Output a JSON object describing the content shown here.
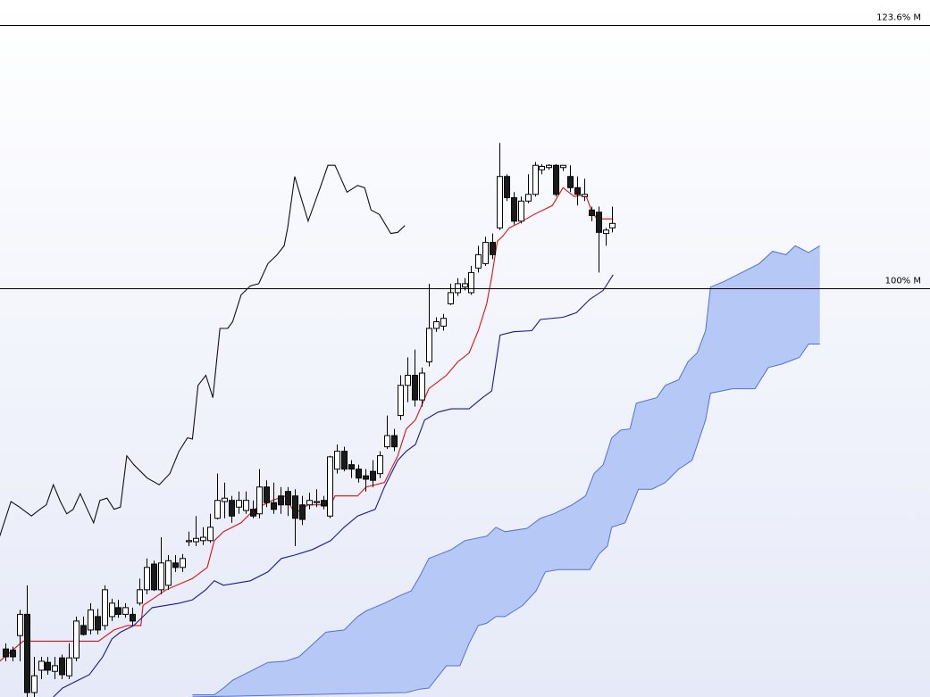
{
  "chart_data": {
    "type": "candlestick",
    "xlim": [
      -0.76,
      131
    ],
    "ylim": [
      63.4,
      125.8
    ],
    "levels": [
      {
        "value": 123.6,
        "label": "123.6% M"
      },
      {
        "value": 100,
        "label": "100% M"
      }
    ],
    "level_color": "#000000",
    "candles": {
      "up_color": "#ffffff",
      "down_color": "#1a1a1a",
      "edge_color": "#000000",
      "x": [
        0,
        1,
        2,
        3,
        4,
        5,
        6,
        7,
        8,
        9,
        10,
        11,
        12,
        13,
        14,
        15,
        16,
        17,
        18,
        19,
        20,
        21,
        22,
        23,
        24,
        25,
        26,
        27,
        28,
        29,
        30,
        31,
        32,
        33,
        34,
        35,
        36,
        37,
        38,
        39,
        40,
        41,
        42,
        43,
        44,
        45,
        46,
        47,
        48,
        49,
        50,
        51,
        52,
        53,
        54,
        55,
        56,
        57,
        58,
        59,
        60,
        61,
        62,
        63,
        64,
        65,
        66,
        67,
        68,
        69,
        70,
        71,
        72,
        73,
        74,
        75,
        76,
        77,
        78,
        79,
        80,
        81,
        82,
        83,
        84,
        85,
        86
      ],
      "open": [
        67.7,
        67.6,
        68.9,
        70.8,
        63.8,
        65.8,
        66.5,
        65.7,
        66.9,
        65.3,
        66.9,
        69.8,
        69.4,
        70.6,
        69.8,
        70.6,
        71.4,
        70.8,
        70.8,
        71.8,
        73.0,
        75.3,
        73.0,
        73.4,
        75.4,
        75.0,
        77.3,
        77.3,
        77.4,
        77.4,
        79.4,
        80.9,
        81.0,
        80.4,
        80.1,
        80.2,
        79.8,
        82.2,
        80.8,
        81.4,
        81.8,
        81.4,
        80.6,
        80.6,
        80.8,
        81.0,
        79.6,
        83.8,
        85.4,
        84.2,
        83.8,
        83.2,
        83.6,
        83.4,
        85.8,
        86.8,
        88.6,
        91.3,
        92.2,
        90.0,
        93.4,
        96.4,
        96.6,
        98.6,
        99.6,
        100.1,
        99.6,
        101.8,
        102.2,
        104.1,
        105.4,
        110.0,
        108.1,
        106.0,
        107.8,
        108.4,
        110.6,
        110.8,
        111.0,
        110.8,
        110.0,
        109.0,
        108.2,
        107.0,
        106.8,
        104.9,
        105.4
      ],
      "high": [
        68.2,
        67.9,
        71.2,
        73.4,
        67.0,
        67.0,
        67.0,
        67.0,
        67.2,
        68.2,
        70.6,
        70.6,
        71.8,
        71.3,
        73.4,
        72.2,
        72.1,
        71.8,
        71.4,
        74.0,
        75.8,
        75.6,
        77.7,
        76.1,
        76.1,
        76.2,
        78.2,
        79.6,
        78.6,
        79.8,
        83.4,
        82.6,
        81.4,
        81.8,
        81.8,
        81.0,
        83.8,
        82.8,
        82.6,
        82.2,
        82.2,
        82.0,
        81.4,
        81.7,
        82.0,
        81.4,
        85.0,
        86.0,
        85.8,
        84.6,
        84.2,
        83.8,
        84.6,
        85.4,
        88.6,
        87.4,
        92.2,
        93.8,
        94.5,
        92.9,
        100.4,
        97.4,
        97.7,
        100.4,
        100.9,
        100.9,
        102.0,
        103.8,
        104.6,
        104.9,
        113.0,
        110.2,
        108.6,
        108.2,
        110.2,
        111.3,
        111.1,
        111.1,
        111.1,
        111.0,
        111.0,
        110.0,
        109.8,
        107.3,
        107.3,
        105.4,
        107.3
      ],
      "low": [
        66.6,
        66.6,
        66.6,
        63.4,
        63.4,
        65.0,
        65.4,
        65.0,
        65.0,
        65.0,
        66.6,
        68.9,
        69.0,
        69.0,
        69.4,
        70.2,
        70.5,
        70.5,
        69.8,
        71.6,
        72.6,
        72.9,
        72.6,
        73.0,
        74.6,
        74.6,
        76.9,
        76.9,
        77.0,
        77.2,
        79.3,
        79.4,
        79.0,
        79.8,
        79.8,
        79.4,
        79.4,
        80.4,
        79.8,
        79.8,
        79.6,
        76.9,
        78.8,
        80.2,
        80.4,
        80.2,
        79.4,
        83.4,
        83.6,
        83.0,
        82.6,
        81.8,
        82.2,
        83.0,
        85.6,
        85.4,
        88.2,
        89.8,
        89.4,
        89.4,
        93.0,
        96.1,
        96.2,
        98.5,
        99.3,
        99.8,
        99.4,
        101.4,
        102.0,
        102.6,
        105.2,
        107.8,
        105.7,
        105.8,
        107.6,
        108.2,
        110.2,
        110.6,
        108.2,
        110.5,
        108.6,
        107.4,
        107.8,
        106.0,
        101.4,
        103.8,
        105.0
      ],
      "close": [
        67.0,
        67.0,
        70.8,
        63.8,
        65.3,
        66.6,
        65.8,
        66.2,
        65.4,
        66.9,
        70.2,
        69.0,
        71.2,
        69.4,
        73.0,
        71.8,
        70.8,
        71.4,
        70.2,
        73.0,
        75.0,
        73.0,
        75.4,
        75.6,
        75.0,
        75.8,
        77.4,
        77.6,
        77.7,
        78.6,
        81.0,
        81.2,
        79.6,
        81.0,
        81.0,
        79.6,
        82.2,
        80.8,
        80.2,
        80.6,
        80.6,
        79.4,
        79.3,
        81.0,
        80.9,
        80.5,
        84.9,
        85.4,
        83.8,
        83.8,
        83.0,
        82.9,
        82.8,
        85.0,
        86.8,
        85.8,
        91.3,
        92.2,
        90.0,
        92.4,
        96.4,
        97.0,
        97.3,
        99.6,
        100.4,
        100.4,
        101.4,
        103.0,
        104.1,
        103.0,
        110.0,
        108.1,
        106.0,
        107.8,
        108.4,
        111.0,
        110.9,
        111.0,
        108.4,
        111.0,
        109.0,
        108.4,
        108.4,
        106.5,
        105.0,
        105.2,
        105.8
      ]
    },
    "lines": [
      {
        "color": "#dd1111",
        "x": [
          -0.8,
          2.5,
          13.2,
          15.4,
          17.3,
          19.2,
          19.5,
          22.8,
          26.5,
          28.6,
          29.6,
          30.9,
          33.4,
          35.3,
          37.8,
          39.7,
          41.0,
          42.9,
          46.1,
          46.7,
          49.9,
          51.1,
          53.7,
          55.6,
          56.8,
          58.1,
          60.0,
          62.5,
          64.1,
          65.7,
          67.0,
          68.2,
          68.9,
          69.7,
          70.4,
          71.4,
          72.7,
          74.9,
          77.5,
          79.0,
          80.6,
          82.2,
          83.0,
          83.8,
          86.1
        ],
        "values": [
          66.6,
          68.4,
          68.4,
          69.4,
          69.8,
          69.8,
          71.6,
          73.0,
          74.0,
          75.0,
          77.4,
          78.2,
          79.0,
          80.2,
          81.0,
          81.4,
          79.8,
          80.6,
          80.6,
          81.4,
          81.4,
          82.2,
          82.6,
          85.0,
          87.4,
          88.2,
          91.0,
          92.2,
          93.4,
          94.2,
          96.2,
          98.6,
          101.0,
          104.2,
          104.6,
          105.4,
          105.8,
          106.6,
          107.4,
          109.0,
          108.2,
          108.4,
          107.0,
          106.2,
          106.2
        ]
      },
      {
        "color": "#1a1a99",
        "x": [
          6.8,
          8.1,
          10.6,
          11.9,
          13.8,
          15.1,
          16.3,
          18.2,
          19.5,
          20.8,
          22.7,
          24.6,
          26.5,
          28.4,
          29.6,
          30.9,
          34.7,
          37.2,
          39.1,
          41.0,
          43.5,
          46.1,
          48.0,
          49.9,
          52.4,
          53.7,
          55.6,
          56.8,
          58.1,
          59.4,
          61.3,
          63.2,
          65.7,
          67.6,
          68.9,
          70.1,
          72.0,
          74.6,
          75.8,
          79.0,
          80.9,
          82.8,
          84.7,
          86.1
        ],
        "values": [
          63.4,
          64.2,
          65.0,
          65.4,
          67.0,
          68.6,
          69.2,
          69.8,
          70.6,
          71.4,
          71.6,
          71.8,
          72.1,
          73.0,
          73.8,
          73.4,
          73.8,
          74.6,
          75.8,
          76.1,
          76.6,
          77.4,
          78.6,
          79.6,
          80.2,
          82.2,
          84.6,
          85.4,
          86.0,
          88.2,
          88.9,
          89.2,
          89.2,
          90.2,
          90.8,
          95.8,
          96.1,
          96.2,
          97.2,
          97.4,
          97.8,
          99.0,
          99.8,
          101.2
        ]
      },
      {
        "color": "#111111",
        "x": [
          -0.8,
          0.8,
          2.0,
          3.7,
          4.9,
          5.8,
          6.8,
          7.8,
          8.7,
          9.6,
          10.6,
          11.6,
          12.5,
          13.4,
          14.4,
          15.4,
          16.3,
          17.2,
          18.2,
          20.1,
          21.8,
          23.3,
          24.6,
          25.8,
          26.5,
          27.3,
          28.4,
          29.4,
          30.4,
          31.5,
          32.2,
          33.4,
          34.7,
          35.9,
          37.2,
          38.5,
          39.5,
          40.0,
          41.0,
          42.9,
          44.6,
          45.7,
          46.7,
          48.4,
          49.9,
          50.9,
          51.8,
          53.0,
          54.6,
          55.6,
          56.6
        ],
        "values": [
          77.8,
          80.9,
          80.4,
          79.6,
          80.2,
          80.6,
          82.4,
          80.9,
          79.8,
          80.2,
          81.6,
          80.2,
          79.0,
          81.0,
          81.2,
          80.2,
          80.4,
          85.0,
          84.2,
          83.0,
          82.4,
          83.4,
          85.4,
          86.6,
          86.5,
          91.3,
          92.2,
          90.2,
          96.4,
          96.4,
          97.0,
          99.4,
          100.2,
          100.4,
          102.2,
          103.0,
          103.8,
          105.4,
          110.0,
          106.0,
          109.0,
          111.0,
          111.0,
          108.6,
          109.2,
          109.0,
          107.0,
          106.6,
          104.9,
          105.0,
          105.6
        ]
      }
    ],
    "cloud": {
      "fill": "#b6c8f6",
      "edge_color": "#4f73d6",
      "span_a": {
        "x": [
          26.5,
          29.6,
          30.9,
          32.2,
          34.7,
          37.2,
          39.7,
          41.6,
          43.5,
          45.4,
          48.0,
          49.9,
          51.1,
          53.7,
          55.6,
          57.5,
          58.7,
          60.0,
          63.2,
          65.1,
          68.2,
          69.5,
          70.8,
          73.9,
          75.8,
          77.7,
          80.3,
          82.2,
          83.4,
          84.7,
          85.9,
          87.2,
          88.5,
          89.4,
          92.3,
          93.5,
          95.4,
          96.7,
          98.0,
          99.2,
          99.9,
          101.8,
          104.3,
          106.8,
          108.7,
          110.6,
          111.9,
          113.8,
          115.4
        ],
        "values": [
          63.6,
          63.6,
          64.2,
          64.9,
          65.7,
          66.5,
          66.6,
          67.0,
          68.1,
          69.2,
          69.4,
          70.6,
          71.1,
          71.8,
          72.4,
          72.9,
          74.2,
          75.8,
          76.6,
          77.4,
          77.8,
          78.6,
          78.2,
          78.5,
          79.4,
          79.8,
          80.6,
          81.4,
          83.4,
          84.2,
          86.6,
          87.3,
          87.4,
          89.7,
          90.2,
          91.3,
          91.8,
          93.4,
          94.2,
          96.2,
          100.1,
          100.6,
          101.4,
          102.2,
          103.3,
          103.0,
          103.8,
          103.2,
          103.8
        ]
      },
      "span_b": {
        "x": [
          26.5,
          56.8,
          58.7,
          60.0,
          62.5,
          64.4,
          65.7,
          67.0,
          68.2,
          69.5,
          70.8,
          73.3,
          75.2,
          76.5,
          78.4,
          82.8,
          84.1,
          85.3,
          85.9,
          87.8,
          89.7,
          91.6,
          93.5,
          95.4,
          97.3,
          99.2,
          99.9,
          103.0,
          106.2,
          108.1,
          110.0,
          112.5,
          113.8,
          115.4
        ],
        "values": [
          63.4,
          63.8,
          64.1,
          64.2,
          66.2,
          66.2,
          68.2,
          69.8,
          70.0,
          70.6,
          70.6,
          71.6,
          72.9,
          74.6,
          74.8,
          74.8,
          76.2,
          76.9,
          78.6,
          79.0,
          82.0,
          82.0,
          82.6,
          83.8,
          84.6,
          88.2,
          90.6,
          91.0,
          91.0,
          92.9,
          93.2,
          93.8,
          95.0,
          95.0
        ]
      }
    }
  }
}
